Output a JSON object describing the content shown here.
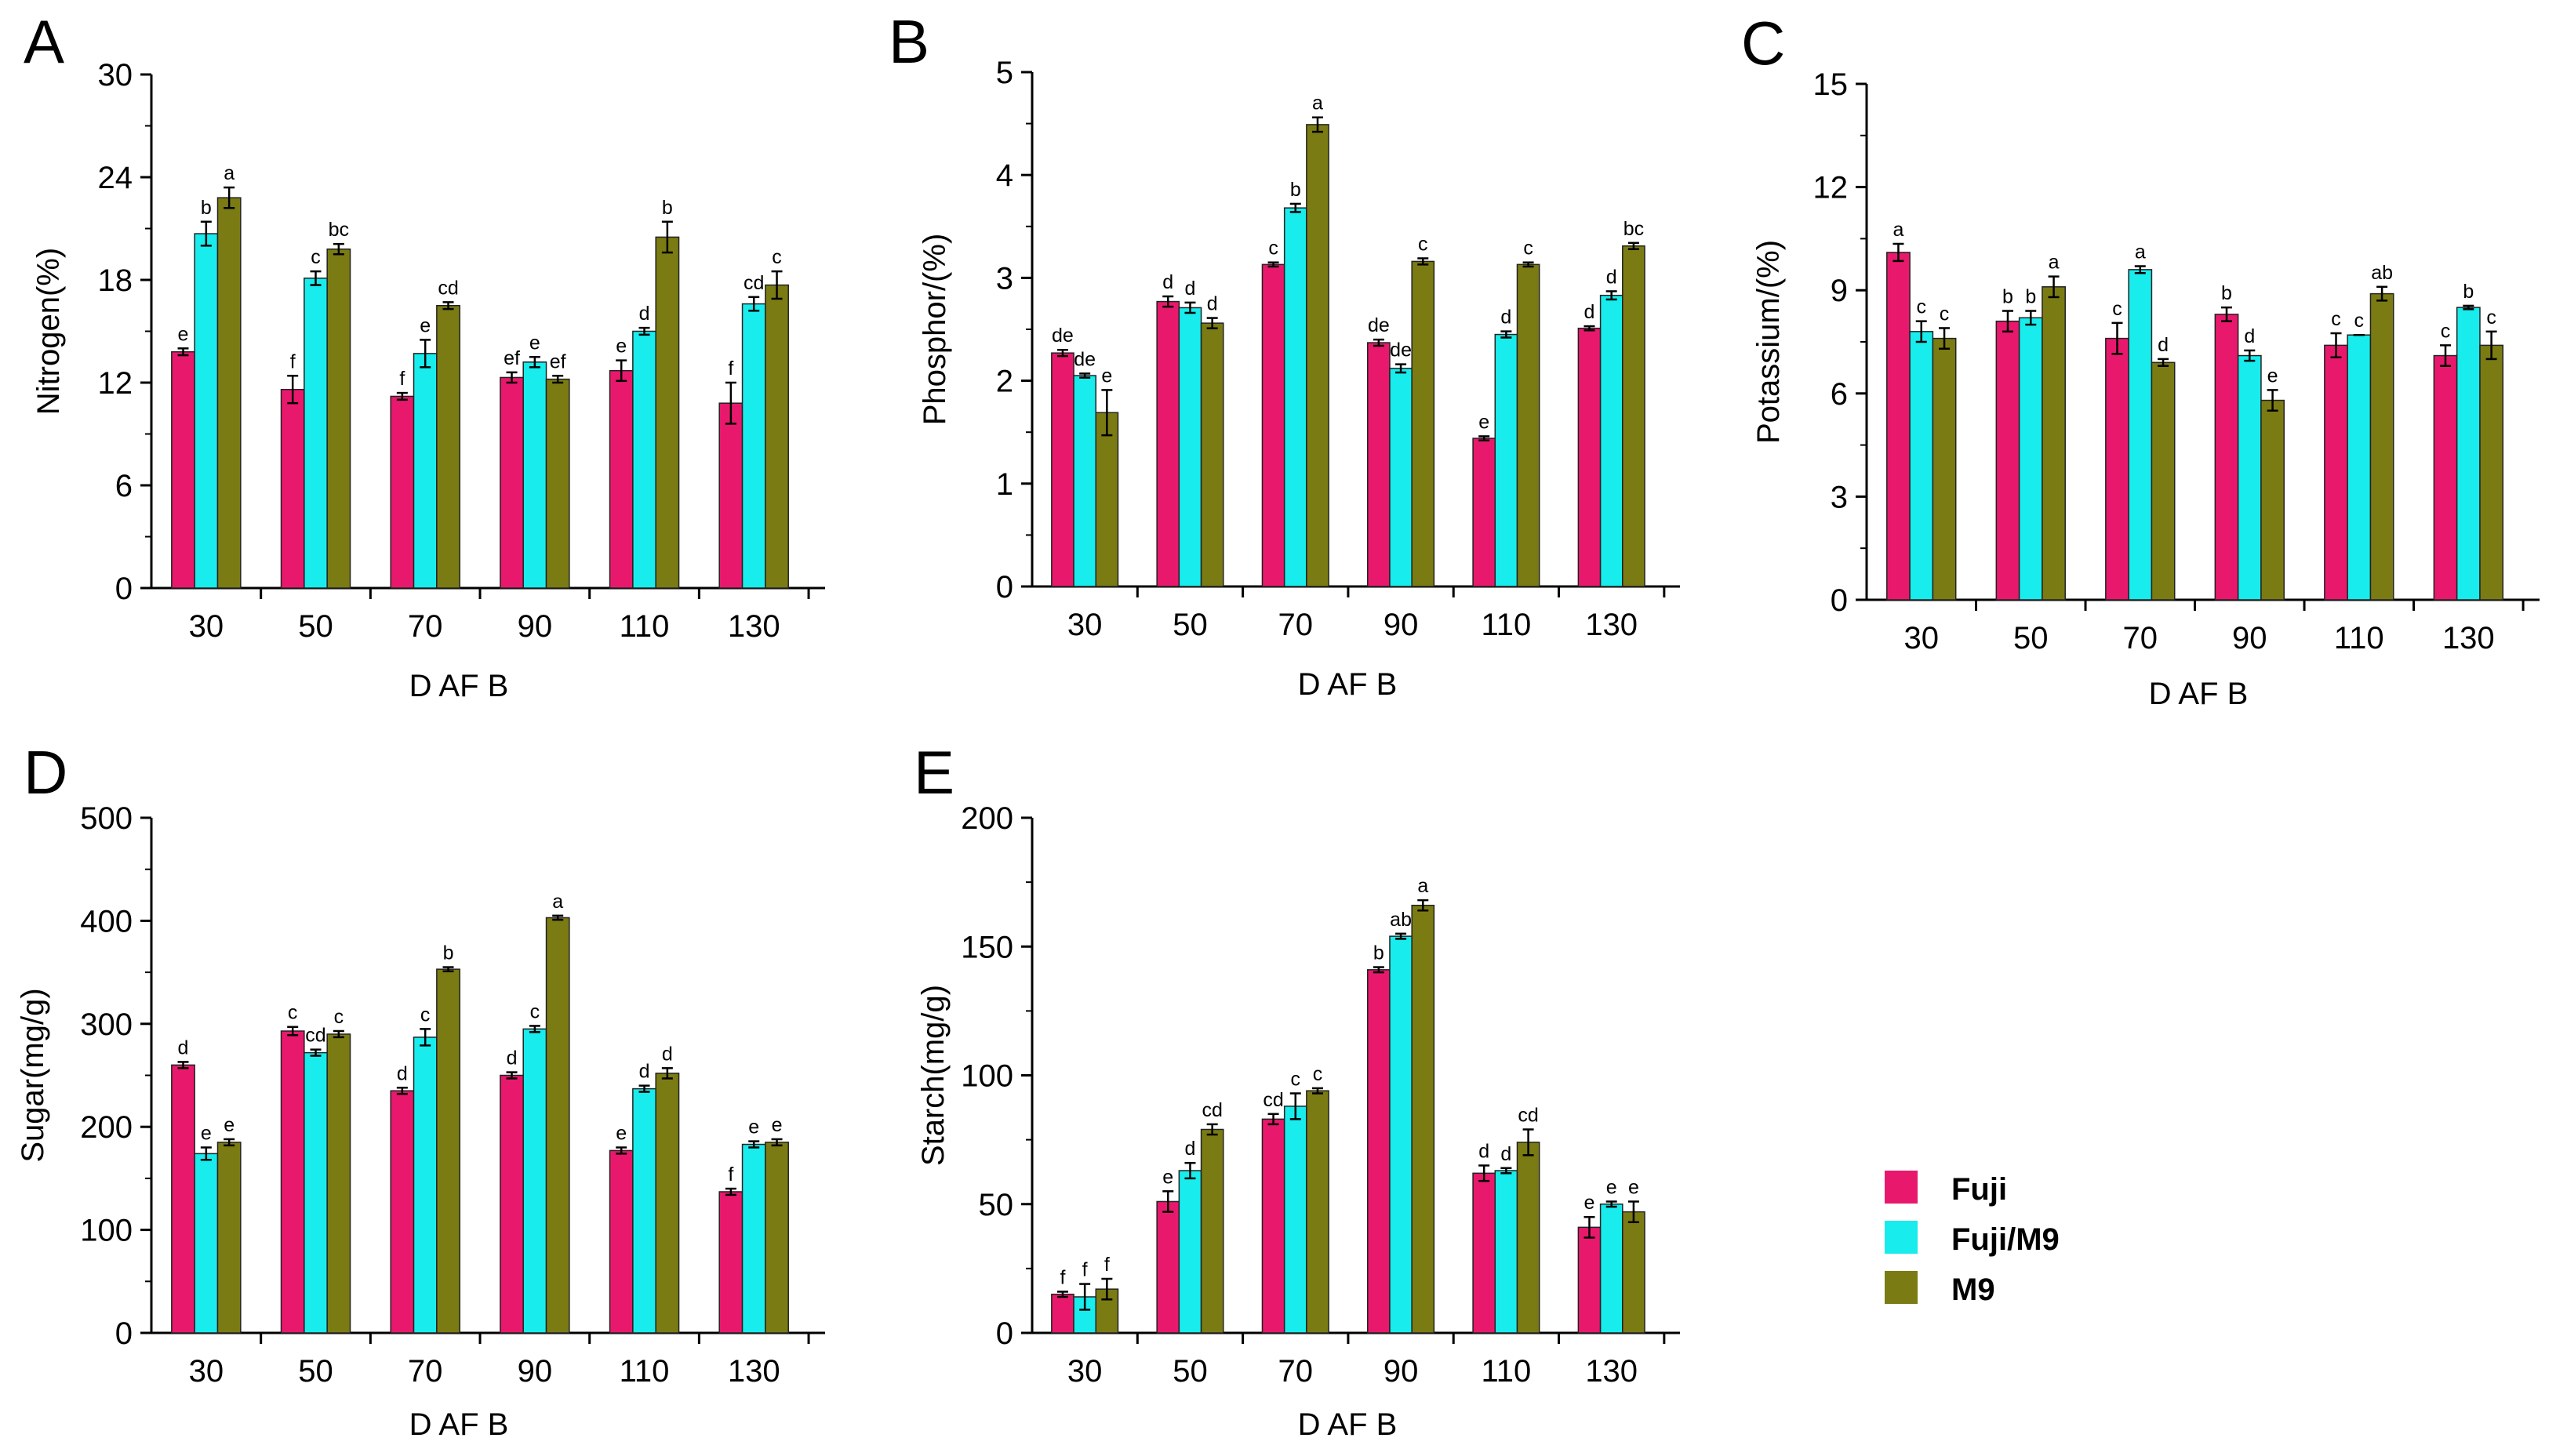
{
  "colors": {
    "Fuji": "#e8196c",
    "Fuji/M9": "#19ecec",
    "M9": "#7b7b14"
  },
  "legend": {
    "items": [
      "Fuji",
      "Fuji/M9",
      "M9"
    ]
  },
  "chart_data": [
    {
      "panel": "A",
      "type": "bar",
      "xlabel": "D AF B",
      "ylabel": "Nitrogen(%)",
      "ylim": [
        0,
        30
      ],
      "yticks": [
        "0",
        "6",
        "12",
        "18",
        "24",
        "30"
      ],
      "categories": [
        "30",
        "50",
        "70",
        "90",
        "110",
        "130"
      ],
      "series": [
        {
          "name": "Fuji",
          "values": [
            13.8,
            11.6,
            11.2,
            12.3,
            12.7,
            10.8
          ],
          "errors": [
            0.2,
            0.8,
            0.2,
            0.3,
            0.6,
            1.2
          ],
          "labels": [
            "e",
            "f",
            "f",
            "ef",
            "e",
            "f"
          ]
        },
        {
          "name": "Fuji/M9",
          "values": [
            20.7,
            18.1,
            13.7,
            13.2,
            15.0,
            16.6
          ],
          "errors": [
            0.7,
            0.4,
            0.8,
            0.3,
            0.2,
            0.4
          ],
          "labels": [
            "b",
            "c",
            "e",
            "e",
            "d",
            "cd"
          ]
        },
        {
          "name": "M9",
          "values": [
            22.8,
            19.8,
            16.5,
            12.2,
            20.5,
            17.7
          ],
          "errors": [
            0.6,
            0.3,
            0.2,
            0.2,
            0.9,
            0.8
          ],
          "labels": [
            "a",
            "bc",
            "cd",
            "ef",
            "b",
            "c"
          ]
        }
      ]
    },
    {
      "panel": "B",
      "type": "bar",
      "xlabel": "D AF B",
      "ylabel": "Phosphor/(%)",
      "ylim": [
        0,
        5
      ],
      "yticks": [
        "0",
        "1",
        "2",
        "3",
        "4",
        "5"
      ],
      "categories": [
        "30",
        "50",
        "70",
        "90",
        "110",
        "130"
      ],
      "series": [
        {
          "name": "Fuji",
          "values": [
            2.27,
            2.77,
            3.13,
            2.37,
            1.44,
            2.51
          ],
          "errors": [
            0.03,
            0.05,
            0.02,
            0.03,
            0.02,
            0.02
          ],
          "labels": [
            "de",
            "d",
            "c",
            "de",
            "e",
            "d"
          ]
        },
        {
          "name": "Fuji/M9",
          "values": [
            2.05,
            2.71,
            3.68,
            2.12,
            2.45,
            2.83
          ],
          "errors": [
            0.02,
            0.05,
            0.04,
            0.04,
            0.03,
            0.04
          ],
          "labels": [
            "de",
            "d",
            "b",
            "de",
            "d",
            "d"
          ]
        },
        {
          "name": "M9",
          "values": [
            1.69,
            2.56,
            4.49,
            3.16,
            3.13,
            3.31
          ],
          "errors": [
            0.22,
            0.05,
            0.07,
            0.03,
            0.02,
            0.03
          ],
          "labels": [
            "e",
            "d",
            "a",
            "c",
            "c",
            "bc"
          ]
        }
      ]
    },
    {
      "panel": "C",
      "type": "bar",
      "xlabel": "D AF B",
      "ylabel": "Potassium/(%)",
      "ylim": [
        0,
        15
      ],
      "yticks": [
        "0",
        "3",
        "6",
        "9",
        "12",
        "15"
      ],
      "categories": [
        "30",
        "50",
        "70",
        "90",
        "110",
        "130"
      ],
      "series": [
        {
          "name": "Fuji",
          "values": [
            10.1,
            8.1,
            7.6,
            8.3,
            7.4,
            7.1
          ],
          "errors": [
            0.25,
            0.3,
            0.45,
            0.2,
            0.35,
            0.3
          ],
          "labels": [
            "a",
            "b",
            "c",
            "b",
            "c",
            "c"
          ]
        },
        {
          "name": "Fuji/M9",
          "values": [
            7.8,
            8.2,
            9.6,
            7.1,
            7.7,
            8.5
          ],
          "errors": [
            0.3,
            0.2,
            0.1,
            0.15,
            0.0,
            0.05
          ],
          "labels": [
            "c",
            "b",
            "a",
            "d",
            "c",
            "b"
          ]
        },
        {
          "name": "M9",
          "values": [
            7.6,
            9.1,
            6.9,
            5.8,
            8.9,
            7.4
          ],
          "errors": [
            0.3,
            0.3,
            0.1,
            0.3,
            0.2,
            0.4
          ],
          "labels": [
            "c",
            "a",
            "d",
            "e",
            "ab",
            "c"
          ]
        }
      ]
    },
    {
      "panel": "D",
      "type": "bar",
      "xlabel": "D AF B",
      "ylabel": "Sugar(mg/g)",
      "ylim": [
        0,
        500
      ],
      "yticks": [
        "0",
        "100",
        "200",
        "300",
        "400",
        "500"
      ],
      "categories": [
        "30",
        "50",
        "70",
        "90",
        "110",
        "130"
      ],
      "series": [
        {
          "name": "Fuji",
          "values": [
            260,
            293,
            235,
            250,
            177,
            137
          ],
          "errors": [
            3,
            4,
            3,
            3,
            3,
            3
          ],
          "labels": [
            "d",
            "c",
            "d",
            "d",
            "e",
            "f"
          ]
        },
        {
          "name": "Fuji/M9",
          "values": [
            174,
            272,
            287,
            295,
            237,
            183
          ],
          "errors": [
            6,
            3,
            8,
            3,
            3,
            3
          ],
          "labels": [
            "e",
            "cd",
            "c",
            "c",
            "d",
            "e"
          ]
        },
        {
          "name": "M9",
          "values": [
            185,
            290,
            353,
            403,
            252,
            185
          ],
          "errors": [
            3,
            3,
            2,
            2,
            5,
            3
          ],
          "labels": [
            "e",
            "c",
            "b",
            "a",
            "d",
            "e"
          ]
        }
      ]
    },
    {
      "panel": "E",
      "type": "bar",
      "xlabel": "D AF B",
      "ylabel": "Starch(mg/g)",
      "ylim": [
        0,
        200
      ],
      "yticks": [
        "0",
        "50",
        "100",
        "150",
        "200"
      ],
      "categories": [
        "30",
        "50",
        "70",
        "90",
        "110",
        "130"
      ],
      "series": [
        {
          "name": "Fuji",
          "values": [
            15,
            51,
            83,
            141,
            62,
            41
          ],
          "errors": [
            1,
            4,
            2,
            1,
            3,
            4
          ],
          "labels": [
            "f",
            "e",
            "cd",
            "b",
            "d",
            "e"
          ]
        },
        {
          "name": "Fuji/M9",
          "values": [
            14,
            63,
            88,
            154,
            63,
            50
          ],
          "errors": [
            5,
            3,
            5,
            1,
            1,
            1
          ],
          "labels": [
            "f",
            "d",
            "c",
            "ab",
            "d",
            "e"
          ]
        },
        {
          "name": "M9",
          "values": [
            17,
            79,
            94,
            166,
            74,
            47
          ],
          "errors": [
            4,
            2,
            1,
            2,
            5,
            4
          ],
          "labels": [
            "f",
            "cd",
            "c",
            "a",
            "cd",
            "e"
          ]
        }
      ]
    }
  ]
}
